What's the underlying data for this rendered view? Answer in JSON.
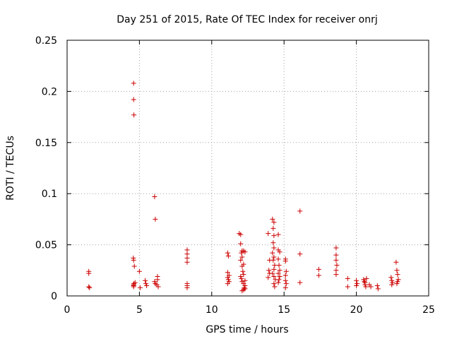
{
  "chart_data": {
    "type": "scatter",
    "title": "Day 251 of 2015, Rate Of TEC Index for receiver onrj",
    "xlabel": "GPS time / hours",
    "ylabel": "ROTI / TECUs",
    "xlim": [
      0,
      25
    ],
    "ylim": [
      0,
      0.25
    ],
    "xticks": [
      "0",
      "5",
      "10",
      "15",
      "20",
      "25"
    ],
    "yticks": [
      "0",
      "0.05",
      "0.1",
      "0.15",
      "0.2",
      "0.25"
    ],
    "grid": true,
    "marker": "plus",
    "color": "#cc0000",
    "x": [
      1.5,
      1.5,
      1.5,
      1.55,
      4.6,
      4.6,
      4.62,
      4.58,
      4.6,
      4.65,
      4.62,
      4.6,
      4.6,
      4.6,
      4.7,
      5.0,
      5.05,
      5.4,
      5.45,
      5.5,
      6.05,
      6.1,
      6.05,
      6.1,
      6.2,
      6.25,
      6.25,
      6.3,
      8.3,
      8.3,
      8.3,
      8.3,
      8.3,
      8.3,
      8.3,
      11.1,
      11.15,
      11.1,
      11.2,
      11.1,
      11.15,
      11.2,
      11.1,
      11.9,
      12.0,
      12.0,
      12.1,
      12.05,
      12.1,
      12.0,
      12.2,
      12.1,
      12.15,
      12.2,
      12.0,
      12.05,
      12.1,
      12.2,
      12.3,
      12.25,
      12.3,
      12.2,
      12.3,
      12.1,
      12.2,
      12.3,
      13.9,
      14.0,
      13.95,
      14.0,
      13.9,
      14.2,
      14.3,
      14.25,
      14.3,
      14.25,
      14.3,
      14.2,
      14.3,
      14.25,
      14.35,
      14.3,
      14.2,
      14.3,
      14.4,
      14.3,
      14.35,
      14.6,
      14.6,
      14.7,
      14.6,
      14.65,
      14.7,
      14.6,
      14.7,
      14.65,
      14.6,
      15.1,
      15.1,
      15.15,
      15.1,
      15.1,
      15.15,
      15.1,
      16.1,
      16.1,
      16.1,
      17.4,
      17.4,
      18.6,
      18.6,
      18.6,
      18.65,
      18.6,
      18.6,
      19.4,
      19.4,
      20.0,
      20.05,
      20.0,
      20.5,
      20.55,
      20.6,
      20.6,
      20.7,
      20.65,
      20.9,
      21.0,
      21.45,
      21.5,
      22.4,
      22.45,
      22.5,
      22.45,
      22.75,
      22.8,
      22.85,
      22.9,
      22.85,
      22.8
    ],
    "y": [
      0.024,
      0.022,
      0.009,
      0.008,
      0.208,
      0.192,
      0.177,
      0.037,
      0.035,
      0.029,
      0.012,
      0.011,
      0.01,
      0.009,
      0.013,
      0.024,
      0.008,
      0.015,
      0.012,
      0.01,
      0.097,
      0.075,
      0.014,
      0.012,
      0.011,
      0.019,
      0.016,
      0.009,
      0.045,
      0.041,
      0.037,
      0.033,
      0.012,
      0.01,
      0.008,
      0.042,
      0.039,
      0.023,
      0.02,
      0.018,
      0.016,
      0.014,
      0.012,
      0.061,
      0.06,
      0.051,
      0.044,
      0.042,
      0.038,
      0.035,
      0.031,
      0.029,
      0.024,
      0.021,
      0.019,
      0.017,
      0.014,
      0.012,
      0.01,
      0.008,
      0.007,
      0.006,
      0.015,
      0.005,
      0.044,
      0.043,
      0.061,
      0.035,
      0.025,
      0.022,
      0.018,
      0.075,
      0.072,
      0.066,
      0.059,
      0.052,
      0.047,
      0.042,
      0.038,
      0.035,
      0.03,
      0.026,
      0.022,
      0.019,
      0.016,
      0.012,
      0.009,
      0.06,
      0.045,
      0.043,
      0.036,
      0.03,
      0.025,
      0.022,
      0.019,
      0.016,
      0.013,
      0.036,
      0.034,
      0.024,
      0.02,
      0.015,
      0.012,
      0.008,
      0.083,
      0.041,
      0.013,
      0.026,
      0.02,
      0.047,
      0.04,
      0.035,
      0.03,
      0.025,
      0.021,
      0.017,
      0.009,
      0.015,
      0.012,
      0.01,
      0.016,
      0.014,
      0.013,
      0.011,
      0.017,
      0.009,
      0.011,
      0.009,
      0.01,
      0.007,
      0.018,
      0.015,
      0.013,
      0.011,
      0.033,
      0.025,
      0.021,
      0.016,
      0.014,
      0.012
    ]
  }
}
